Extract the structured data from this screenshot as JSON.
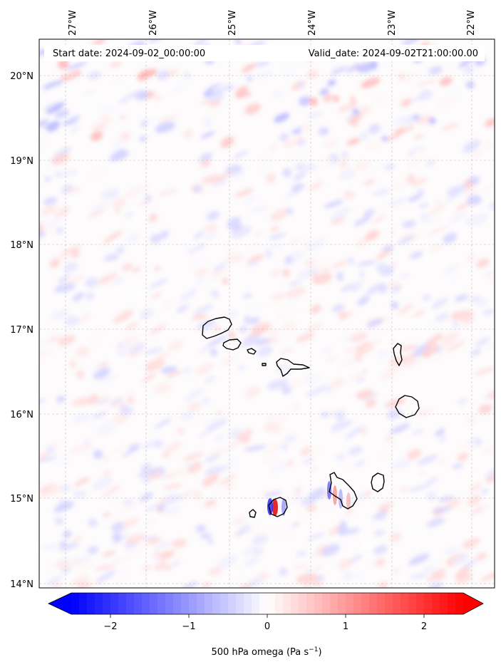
{
  "header": {
    "start_label": "Start date: 2024-09-02_00:00:00",
    "valid_label": "Valid_date: 2024-09-02T21:00:00.00"
  },
  "longitude_labels": [
    "27°W",
    "26°W",
    "25°W",
    "24°W",
    "23°W",
    "22°W"
  ],
  "latitude_labels": [
    "20°N",
    "19°N",
    "18°N",
    "17°N",
    "16°N",
    "15°N",
    "14°N"
  ],
  "colorbar": {
    "ticks": [
      "−2",
      "−1",
      "0",
      "1",
      "2"
    ],
    "tick_values": [
      -2,
      -1,
      0,
      1,
      2
    ],
    "range": [
      -2.5,
      2.5
    ],
    "label_main": "500 hPa omega (Pa s",
    "label_exp": "−1",
    "label_close": ")",
    "colormap": "bwr",
    "color_low": "#0000ff",
    "color_mid": "#ffffff",
    "color_high": "#ff0000"
  },
  "map": {
    "projection": "lon/lat grid",
    "gridlines": true,
    "coastline_color": "#000000",
    "islands": [
      "Santo Antão",
      "São Vicente",
      "Santa Luzia",
      "São Nicolau",
      "Sal",
      "Boa Vista",
      "Brava",
      "Fogo",
      "Santiago",
      "Maio"
    ]
  }
}
